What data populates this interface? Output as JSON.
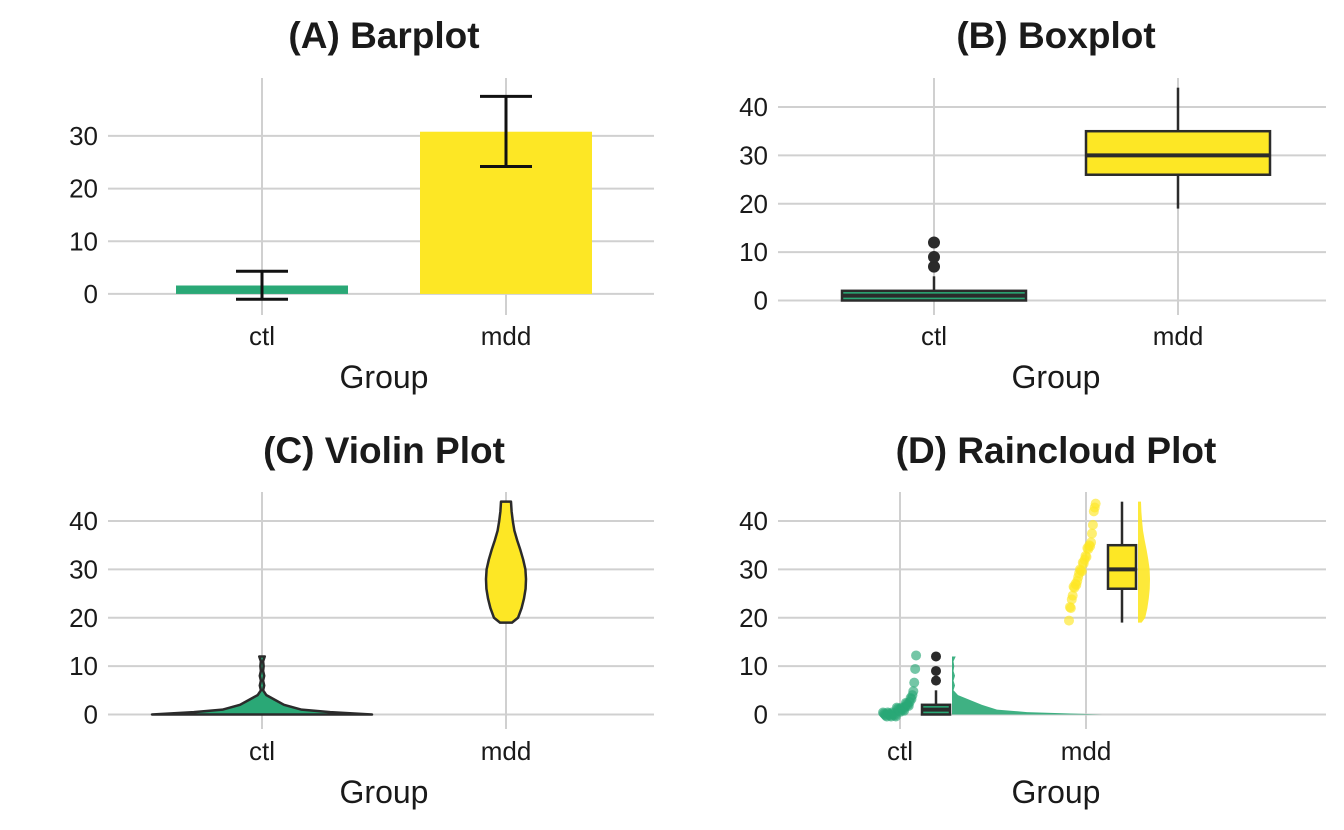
{
  "colors": {
    "ctl": "#2aa876",
    "mdd": "#fde725",
    "outline": "#2b2b2b",
    "grid": "#d0d0d0"
  },
  "chart_data": [
    {
      "id": "A",
      "type": "bar",
      "title": "(A) Barplot",
      "xlabel": "Group",
      "ylabel": "",
      "categories": [
        "ctl",
        "mdd"
      ],
      "yticks": [
        "0",
        "10",
        "20",
        "30"
      ],
      "ylim": [
        -4,
        41
      ],
      "values": [
        1.6,
        30.8
      ],
      "error_low": [
        -1.0,
        24.2
      ],
      "error_high": [
        4.3,
        37.5
      ]
    },
    {
      "id": "B",
      "type": "box",
      "title": "(B) Boxplot",
      "xlabel": "Group",
      "ylabel": "",
      "categories": [
        "ctl",
        "mdd"
      ],
      "yticks": [
        "0",
        "10",
        "20",
        "30",
        "40"
      ],
      "ylim": [
        -3,
        46
      ],
      "boxes": [
        {
          "min": 0,
          "q1": 0,
          "median": 1,
          "q3": 2,
          "max": 5,
          "outliers": [
            7,
            9,
            12
          ]
        },
        {
          "min": 19,
          "q1": 26,
          "median": 30,
          "q3": 35,
          "max": 44,
          "outliers": []
        }
      ]
    },
    {
      "id": "C",
      "type": "violin",
      "title": "(C) Violin Plot",
      "xlabel": "Group",
      "ylabel": "",
      "categories": [
        "ctl",
        "mdd"
      ],
      "yticks": [
        "0",
        "10",
        "20",
        "30",
        "40"
      ],
      "ylim": [
        -3,
        46
      ],
      "violins": [
        {
          "y": [
            0,
            0.5,
            1,
            2,
            3,
            4,
            5,
            6,
            7,
            8,
            9,
            10,
            11,
            12
          ],
          "density": [
            1.0,
            0.62,
            0.36,
            0.2,
            0.12,
            0.04,
            0.01,
            0.02,
            0.01,
            0.02,
            0.01,
            0.015,
            0.01,
            0.025
          ]
        },
        {
          "y": [
            19,
            20,
            22,
            24,
            26,
            28,
            30,
            32,
            34,
            36,
            38,
            40,
            42,
            44
          ],
          "density": [
            0.3,
            0.6,
            0.78,
            0.9,
            0.98,
            1.0,
            0.97,
            0.86,
            0.72,
            0.56,
            0.42,
            0.34,
            0.28,
            0.25
          ]
        }
      ]
    },
    {
      "id": "D",
      "type": "raincloud",
      "title": "(D) Raincloud Plot",
      "xlabel": "Group",
      "ylabel": "",
      "categories": [
        "ctl",
        "mdd"
      ],
      "yticks": [
        "0",
        "10",
        "20",
        "30",
        "40"
      ],
      "ylim": [
        -3,
        46
      ],
      "points": [
        [
          0,
          0,
          0,
          0,
          0,
          0,
          0,
          0,
          0,
          0,
          0,
          0,
          0,
          0,
          0,
          1,
          1,
          1,
          1,
          1,
          1,
          1,
          1,
          1,
          2,
          2,
          2,
          2,
          2,
          3,
          3,
          3,
          4,
          5,
          7,
          9,
          12
        ],
        [
          19,
          22,
          22,
          24,
          25,
          26,
          26,
          27,
          27,
          28,
          28,
          29,
          30,
          30,
          30,
          31,
          31,
          32,
          33,
          33,
          34,
          34,
          35,
          35,
          36,
          37,
          39,
          42,
          43,
          44
        ]
      ],
      "boxes": [
        {
          "min": 0,
          "q1": 0,
          "median": 1,
          "q3": 2,
          "max": 5,
          "outliers": [
            7,
            9,
            12
          ]
        },
        {
          "min": 19,
          "q1": 26,
          "median": 30,
          "q3": 35,
          "max": 44,
          "outliers": []
        }
      ],
      "clouds": [
        {
          "y": [
            0,
            0.5,
            1,
            2,
            3,
            4,
            5,
            6,
            7,
            8,
            9,
            10,
            11,
            12
          ],
          "density": [
            1.0,
            0.5,
            0.3,
            0.2,
            0.12,
            0.04,
            0.01,
            0.02,
            0.01,
            0.02,
            0.01,
            0.015,
            0.01,
            0.025
          ]
        },
        {
          "y": [
            19,
            20,
            22,
            24,
            26,
            28,
            30,
            32,
            34,
            36,
            38,
            40,
            42,
            44
          ],
          "density": [
            0.3,
            0.6,
            0.78,
            0.9,
            0.98,
            1.0,
            0.97,
            0.86,
            0.72,
            0.56,
            0.42,
            0.34,
            0.28,
            0.25
          ]
        }
      ]
    }
  ]
}
